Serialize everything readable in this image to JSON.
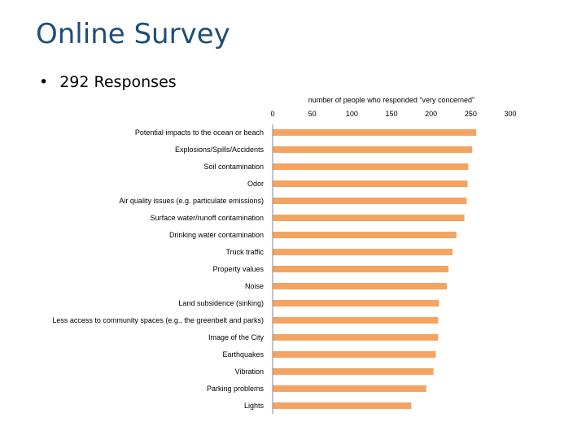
{
  "slide": {
    "title": "Online Survey",
    "bullet": "292 Responses"
  },
  "colors": {
    "bar": "#f4a460",
    "title": "#1f4e79",
    "axis": "#888888"
  },
  "chart_data": {
    "type": "bar",
    "orientation": "horizontal",
    "title": "",
    "xlabel": "number of people who responded \"very concerned\"",
    "ylabel": "",
    "xlim": [
      0,
      300
    ],
    "xticks": [
      0,
      50,
      100,
      150,
      200,
      250,
      300
    ],
    "grid": false,
    "legend": "none",
    "categories": [
      "Potential impacts to the ocean or beach",
      "Explosions/Spills/Accidents",
      "Soil contamination",
      "Odor",
      "Air quality issues (e.g. particulate emissions)",
      "Surface water/runoff contamination",
      "Drinking water contamination",
      "Truck traffic",
      "Property values",
      "Noise",
      "Land subsidence (sinking)",
      "Less access to community spaces (e.g., the greenbelt and parks)",
      "Image of the City",
      "Earthquakes",
      "Vibration",
      "Parking problems",
      "Lights"
    ],
    "values": [
      257,
      252,
      247,
      246,
      245,
      242,
      232,
      227,
      222,
      220,
      210,
      209,
      209,
      206,
      203,
      194,
      175
    ]
  }
}
